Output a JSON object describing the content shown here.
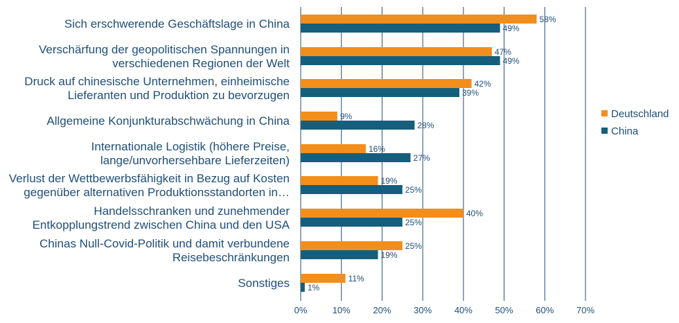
{
  "chart_data": {
    "type": "bar",
    "orientation": "horizontal",
    "categories": [
      [
        "Sich erschwerende Geschäftslage in China"
      ],
      [
        "Verschärfung der geopolitischen Spannungen in",
        "verschiedenen Regionen der Welt"
      ],
      [
        "Druck auf chinesische Unternehmen, einheimische",
        "Lieferanten und Produktion zu bevorzugen"
      ],
      [
        "Allgemeine Konjunkturabschwächung in China"
      ],
      [
        "Internationale Logistik (höhere Preise,",
        "lange/unvorhersehbare Lieferzeiten)"
      ],
      [
        "Verlust der Wettbewerbsfähigkeit in Bezug auf Kosten",
        "gegenüber alternativen Produktionsstandorten in…"
      ],
      [
        "Handelsschranken und zunehmender",
        "Entkopplungstrend zwischen China und den USA"
      ],
      [
        "Chinas Null-Covid-Politik und damit verbundene",
        "Reisebeschränkungen"
      ],
      [
        "Sonstiges"
      ]
    ],
    "series": [
      {
        "name": "Deutschland",
        "color": "#f28e1c",
        "values": [
          58,
          47,
          42,
          9,
          16,
          19,
          40,
          25,
          11
        ],
        "labels": [
          "58%",
          "47%",
          "42%",
          "9%",
          "16%",
          "19%",
          "40%",
          "25%",
          "11%"
        ]
      },
      {
        "name": "China",
        "color": "#155f7c",
        "values": [
          49,
          49,
          39,
          28,
          27,
          25,
          25,
          19,
          1
        ],
        "labels": [
          "49%",
          "49%",
          "39%",
          "28%",
          "27%",
          "25%",
          "25%",
          "19%",
          "1%"
        ]
      }
    ],
    "xlim": [
      0,
      70
    ],
    "xticks": [
      0,
      10,
      20,
      30,
      40,
      50,
      60,
      70
    ],
    "xtick_labels": [
      "0%",
      "10%",
      "20%",
      "30%",
      "40%",
      "50%",
      "60%",
      "70%"
    ],
    "grid": true,
    "gridline_color": "#1f4e79",
    "legend_position": "right",
    "title": "",
    "xlabel": "",
    "ylabel": ""
  }
}
